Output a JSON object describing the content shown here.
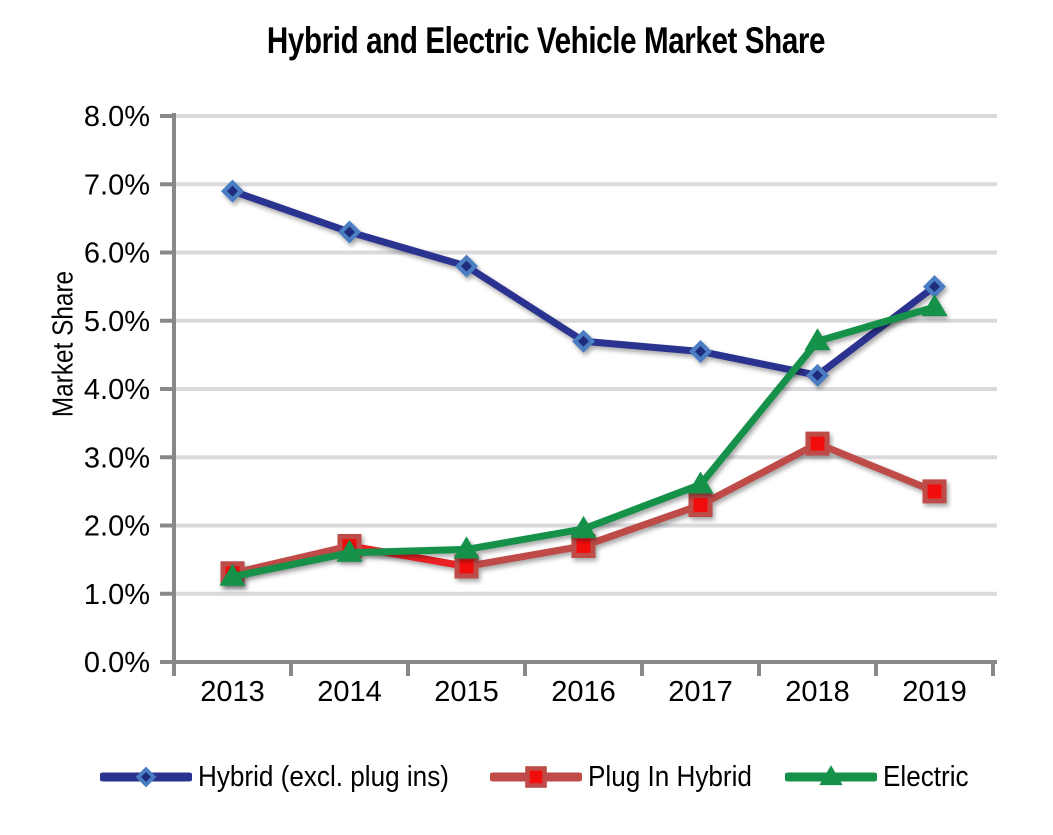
{
  "chart_data": {
    "type": "line",
    "title": "Hybrid and Electric Vehicle Market Share",
    "y_axis_title": "Market Share",
    "xlabel": "",
    "categories": [
      "2013",
      "2014",
      "2015",
      "2016",
      "2017",
      "2018",
      "2019"
    ],
    "y_tick_labels": [
      "0.0%",
      "1.0%",
      "2.0%",
      "3.0%",
      "4.0%",
      "5.0%",
      "6.0%",
      "7.0%",
      "8.0%"
    ],
    "ylim": [
      0,
      8
    ],
    "grid": true,
    "legend_position": "bottom",
    "series": [
      {
        "name": "Hybrid (excl. plug ins)",
        "marker": "diamond",
        "line_color": "#2B3390",
        "marker_fill": "#4B7DC3",
        "marker_inner": "#1F2C7C",
        "values": [
          6.9,
          6.3,
          5.8,
          4.7,
          4.55,
          4.2,
          5.5
        ]
      },
      {
        "name": "Plug In Hybrid",
        "marker": "square",
        "line_color": "#BE4B48",
        "marker_fill": "#F20D0D",
        "marker_border": "#BE4B48",
        "segment_overrides": [
          {
            "from": 1,
            "to": 2,
            "color": "#EC2024"
          }
        ],
        "values": [
          1.3,
          1.7,
          1.4,
          1.7,
          2.3,
          3.2,
          2.5
        ]
      },
      {
        "name": "Electric",
        "marker": "triangle",
        "line_color": "#15914A",
        "marker_fill": "#15914A",
        "values": [
          1.25,
          1.6,
          1.65,
          1.95,
          2.6,
          4.7,
          5.2
        ]
      }
    ],
    "colors": {
      "gridline": "#DADADD",
      "axis": "#888888",
      "text": "#000000",
      "background": "#FFFFFF"
    }
  }
}
